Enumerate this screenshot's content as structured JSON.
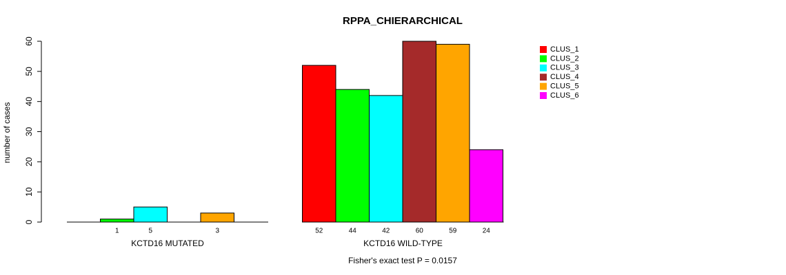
{
  "chart_data": {
    "type": "bar",
    "title": "RPPA_CHIERARCHICAL",
    "ylabel": "number of cases",
    "ylim": [
      0,
      60
    ],
    "yticks": [
      0,
      10,
      20,
      30,
      40,
      50,
      60
    ],
    "series_names": [
      "CLUS_1",
      "CLUS_2",
      "CLUS_3",
      "CLUS_4",
      "CLUS_5",
      "CLUS_6"
    ],
    "colors": [
      "#ff0000",
      "#00ff00",
      "#00ffff",
      "#a52a2a",
      "#ffa500",
      "#ff00ff"
    ],
    "groups": [
      {
        "name": "KCTD16 MUTATED",
        "values": [
          0,
          1,
          5,
          0,
          3,
          0
        ],
        "labels": [
          "",
          "1",
          "5",
          "",
          "3",
          ""
        ]
      },
      {
        "name": "KCTD16 WILD-TYPE",
        "values": [
          52,
          44,
          42,
          60,
          59,
          24
        ],
        "labels": [
          "52",
          "44",
          "42",
          "60",
          "59",
          "24"
        ]
      }
    ],
    "footnote": "Fisher's exact test P = 0.0157",
    "legend_position": "top-right"
  }
}
